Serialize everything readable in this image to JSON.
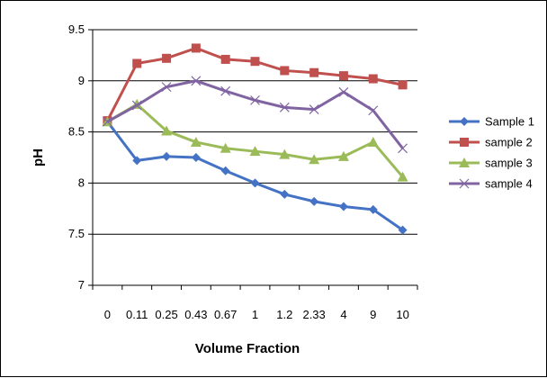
{
  "chart_data": {
    "type": "line",
    "title": "",
    "xlabel": "Volume Fraction",
    "ylabel": "pH",
    "categories": [
      "0",
      "0.11",
      "0.25",
      "0.43",
      "0.67",
      "1",
      "1.2",
      "2.33",
      "4",
      "9",
      "10"
    ],
    "y_ticks": [
      "7",
      "7.5",
      "8",
      "8.5",
      "9",
      "9.5"
    ],
    "ylim": [
      7,
      9.5
    ],
    "grid": "horizontal",
    "legend_position": "right",
    "series": [
      {
        "name": "Sample 1",
        "color": "#4472C4",
        "marker": "diamond",
        "values": [
          8.6,
          8.22,
          8.26,
          8.25,
          8.12,
          8.0,
          7.89,
          7.82,
          7.77,
          7.74,
          7.54
        ]
      },
      {
        "name": "sample 2",
        "color": "#C0504D",
        "marker": "square",
        "values": [
          8.61,
          9.17,
          9.22,
          9.32,
          9.21,
          9.19,
          9.1,
          9.08,
          9.05,
          9.02,
          8.96
        ]
      },
      {
        "name": "sample 3",
        "color": "#9BBB59",
        "marker": "triangle",
        "values": [
          8.6,
          8.77,
          8.51,
          8.4,
          8.34,
          8.31,
          8.28,
          8.23,
          8.26,
          8.4,
          8.06
        ]
      },
      {
        "name": "sample 4",
        "color": "#8064A2",
        "marker": "x",
        "values": [
          8.6,
          8.76,
          8.94,
          9.0,
          8.9,
          8.81,
          8.74,
          8.72,
          8.89,
          8.71,
          8.34
        ]
      }
    ]
  }
}
